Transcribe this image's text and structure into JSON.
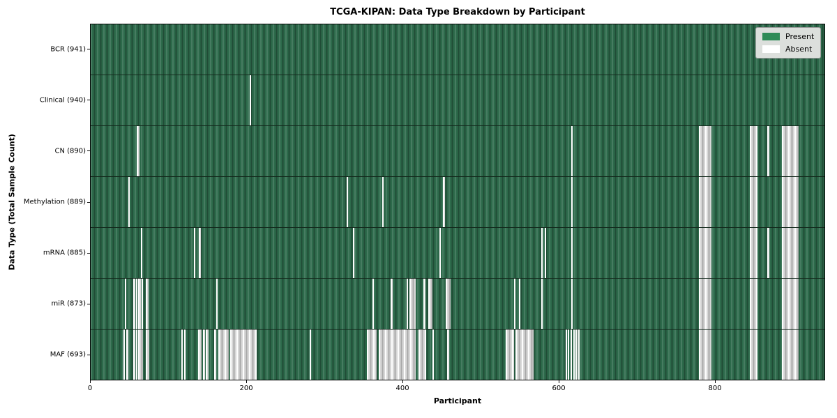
{
  "chart_data": {
    "type": "heatmap",
    "title": "TCGA-KIPAN: Data Type Breakdown by Participant",
    "xlabel": "Participant",
    "ylabel": "Data Type (Total Sample Count)",
    "x_range": [
      0,
      941
    ],
    "x_ticks": [
      0,
      200,
      400,
      600,
      800
    ],
    "grid": false,
    "legend_position": "upper-right",
    "colors": {
      "present": "#2e8b57",
      "absent": "#ffffff"
    },
    "legend": [
      {
        "label": "Present",
        "color": "#2e8b57"
      },
      {
        "label": "Absent",
        "color": "#ffffff"
      }
    ],
    "cell_states": [
      "Present",
      "Absent"
    ],
    "rows": [
      {
        "label": "BCR (941)",
        "data_type": "BCR",
        "count": 941,
        "absent_ranges": []
      },
      {
        "label": "Clinical (940)",
        "data_type": "Clinical",
        "count": 940,
        "absent_ranges": [
          [
            204,
            206
          ]
        ]
      },
      {
        "label": "CN (890)",
        "data_type": "CN",
        "count": 890,
        "absent_ranges": [
          [
            59,
            63
          ],
          [
            616,
            618
          ],
          [
            780,
            796
          ],
          [
            845,
            855
          ],
          [
            868,
            870
          ],
          [
            886,
            908
          ]
        ]
      },
      {
        "label": "Methylation (889)",
        "data_type": "Methylation",
        "count": 889,
        "absent_ranges": [
          [
            48,
            50
          ],
          [
            328,
            330
          ],
          [
            374,
            376
          ],
          [
            452,
            454
          ],
          [
            616,
            618
          ],
          [
            780,
            796
          ],
          [
            845,
            855
          ],
          [
            886,
            908
          ]
        ]
      },
      {
        "label": "mRNA (885)",
        "data_type": "mRNA",
        "count": 885,
        "absent_ranges": [
          [
            64,
            66
          ],
          [
            132,
            134
          ],
          [
            139,
            141
          ],
          [
            336,
            338
          ],
          [
            447,
            449
          ],
          [
            578,
            580
          ],
          [
            582,
            584
          ],
          [
            616,
            618
          ],
          [
            780,
            796
          ],
          [
            845,
            855
          ],
          [
            868,
            870
          ],
          [
            886,
            908
          ]
        ]
      },
      {
        "label": "miR (873)",
        "data_type": "miR",
        "count": 873,
        "absent_ranges": [
          [
            44,
            46
          ],
          [
            55,
            57
          ],
          [
            58,
            60
          ],
          [
            61,
            64
          ],
          [
            65,
            67
          ],
          [
            71,
            74
          ],
          [
            161,
            163
          ],
          [
            361,
            363
          ],
          [
            385,
            387
          ],
          [
            405,
            407
          ],
          [
            409,
            417
          ],
          [
            427,
            429
          ],
          [
            433,
            438
          ],
          [
            455,
            462
          ],
          [
            543,
            545
          ],
          [
            549,
            551
          ],
          [
            578,
            580
          ],
          [
            616,
            618
          ],
          [
            780,
            796
          ],
          [
            845,
            855
          ],
          [
            886,
            908
          ]
        ]
      },
      {
        "label": "MAF (693)",
        "data_type": "MAF",
        "count": 693,
        "absent_ranges": [
          [
            42,
            44
          ],
          [
            46,
            48
          ],
          [
            55,
            57
          ],
          [
            58,
            60
          ],
          [
            61,
            67
          ],
          [
            71,
            75
          ],
          [
            116,
            118
          ],
          [
            120,
            122
          ],
          [
            138,
            142
          ],
          [
            144,
            147
          ],
          [
            148,
            151
          ],
          [
            158,
            161
          ],
          [
            164,
            177
          ],
          [
            179,
            213
          ],
          [
            281,
            283
          ],
          [
            354,
            367
          ],
          [
            369,
            417
          ],
          [
            420,
            430
          ],
          [
            438,
            440
          ],
          [
            457,
            460
          ],
          [
            532,
            543
          ],
          [
            545,
            568
          ],
          [
            609,
            611
          ],
          [
            612,
            614
          ],
          [
            615,
            617
          ],
          [
            619,
            621
          ],
          [
            622,
            624
          ],
          [
            625,
            627
          ],
          [
            780,
            796
          ],
          [
            845,
            855
          ],
          [
            886,
            908
          ]
        ]
      }
    ]
  }
}
